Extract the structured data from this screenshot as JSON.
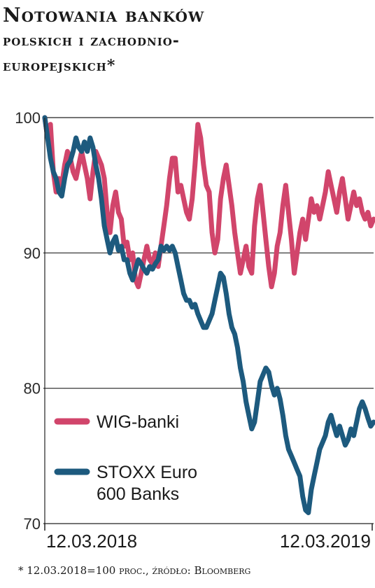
{
  "title": {
    "line1": "Notowania banków",
    "line2": "polskich i zachodnio-",
    "line3": "europejskich*"
  },
  "footnote": "* 12.03.2018=100 proc., źródło: Bloomberg",
  "colors": {
    "wig": "#d1456b",
    "stoxx": "#1d5a7e",
    "grid": "#222222"
  },
  "chart_data": {
    "type": "line",
    "title": "Notowania banków polskich i zachodnioeuropejskich*",
    "xlabel": "",
    "ylabel": "",
    "ylim": [
      70,
      100
    ],
    "yticks": [
      "100",
      "90",
      "80",
      "70"
    ],
    "x_start_label": "12.03.2018",
    "x_end_label": "12.03.2019",
    "grid": "horizontal",
    "legend_position": "left-middle",
    "series": [
      {
        "name": "WIG-banki",
        "color": "#d1456b",
        "values": [
          100,
          98.5,
          99.5,
          96,
          94.5,
          95.5,
          95,
          96.5,
          97.5,
          97,
          96,
          95.5,
          96.5,
          97.5,
          96.5,
          95.5,
          94,
          96,
          97.5,
          97,
          96.5,
          95.5,
          93,
          91.5,
          93.5,
          94.5,
          93,
          92.5,
          90.5,
          90.8,
          89.5,
          90,
          88,
          87.5,
          88.5,
          89.5,
          90.5,
          89.5,
          89.2,
          90,
          89,
          90.5,
          92,
          93.5,
          95.5,
          97,
          97,
          94.5,
          95,
          94,
          93,
          92.5,
          94,
          96.5,
          99.5,
          98.5,
          96.5,
          95,
          94.5,
          91.5,
          90,
          91,
          94,
          95.5,
          96.5,
          95,
          93.5,
          91.5,
          90,
          88.5,
          89.5,
          90.5,
          89,
          88.5,
          92,
          94,
          95,
          93,
          91,
          89,
          87.5,
          88.5,
          90.5,
          91.5,
          93.5,
          95,
          93,
          91,
          88.5,
          90,
          91.5,
          92.5,
          91,
          92.5,
          94,
          93,
          93.5,
          92.5,
          93.5,
          94.5,
          96,
          95,
          94,
          93,
          94.5,
          95.5,
          94,
          92.5,
          93.5,
          94.5,
          93.5,
          94,
          93,
          92.5,
          93,
          92,
          92.5
        ]
      },
      {
        "name": "STOXX Euro 600 Banks",
        "color": "#1d5a7e",
        "values": [
          100,
          98.5,
          97,
          96,
          95.5,
          94.5,
          94.2,
          95.5,
          96.5,
          96.8,
          97.5,
          98.5,
          97.8,
          97.5,
          98.2,
          97.5,
          98.5,
          97.8,
          96.5,
          95.5,
          94,
          92,
          91,
          90,
          90.8,
          91.2,
          90.2,
          90.5,
          89.5,
          89.5,
          88.5,
          88,
          88.8,
          89.5,
          89.2,
          88.8,
          88.5,
          89,
          88.8,
          89.2,
          89.5,
          90.5,
          90.2,
          90.5,
          90.2,
          90.5,
          90,
          89,
          88,
          87,
          86.5,
          86.5,
          86,
          86.2,
          85.5,
          85,
          84.5,
          84.5,
          85,
          85.5,
          86.5,
          87.5,
          88.5,
          88.2,
          87,
          85.5,
          84.5,
          84,
          83,
          81.5,
          80.5,
          79,
          78,
          77,
          77.5,
          79,
          80.5,
          81,
          81.5,
          81.2,
          80.2,
          79.5,
          80,
          79.2,
          78,
          76.5,
          75.5,
          75,
          74.5,
          74,
          73.5,
          72,
          71,
          70.8,
          72.5,
          73.5,
          74.5,
          75.5,
          76,
          76.5,
          77.5,
          78,
          77.2,
          76.5,
          77.2,
          76.5,
          75.8,
          76.2,
          77,
          76.5,
          77.5,
          78.5,
          79,
          78.5,
          77.8,
          77.2,
          77.5
        ]
      }
    ]
  }
}
